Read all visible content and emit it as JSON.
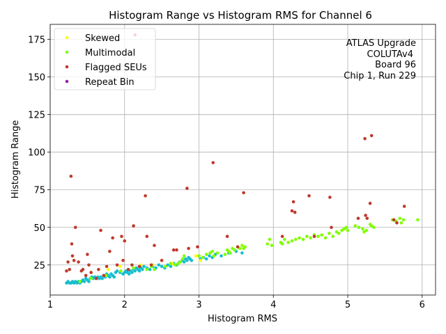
{
  "chart_data": {
    "type": "scatter",
    "title": "Histogram Range vs Histogram RMS for Channel 6",
    "xlabel": "Histogram RMS",
    "ylabel": "Histogram Range",
    "xlim": [
      1.0,
      6.18
    ],
    "ylim": [
      5.0,
      185.0
    ],
    "x_ticks": [
      1,
      2,
      3,
      4,
      5,
      6
    ],
    "y_ticks": [
      25,
      50,
      75,
      100,
      125,
      150,
      175
    ],
    "grid": true,
    "legend_position": "upper-left",
    "annotation": [
      "ATLAS Upgrade",
      "COLUTAv4",
      "Board 96",
      "Chip 1, Run 229"
    ],
    "series": [
      {
        "color": "#17becf",
        "points": [
          [
            1.22,
            13
          ],
          [
            1.24,
            14
          ],
          [
            1.26,
            13
          ],
          [
            1.28,
            13
          ],
          [
            1.3,
            14
          ],
          [
            1.32,
            13
          ],
          [
            1.34,
            14
          ],
          [
            1.36,
            13
          ],
          [
            1.38,
            14
          ],
          [
            1.4,
            13
          ],
          [
            1.42,
            14
          ],
          [
            1.44,
            15
          ],
          [
            1.46,
            14
          ],
          [
            1.48,
            16
          ],
          [
            1.5,
            15
          ],
          [
            1.52,
            14
          ],
          [
            1.54,
            16
          ],
          [
            1.56,
            17
          ],
          [
            1.58,
            16
          ],
          [
            1.6,
            17
          ],
          [
            1.62,
            16
          ],
          [
            1.64,
            17
          ],
          [
            1.66,
            16
          ],
          [
            1.68,
            17
          ],
          [
            1.7,
            16
          ],
          [
            1.72,
            18
          ],
          [
            1.74,
            17
          ],
          [
            1.76,
            19
          ],
          [
            1.78,
            18
          ],
          [
            1.8,
            17
          ],
          [
            1.82,
            19
          ],
          [
            1.84,
            18
          ],
          [
            1.86,
            17
          ],
          [
            1.88,
            20
          ],
          [
            1.9,
            21
          ],
          [
            1.94,
            20
          ],
          [
            1.98,
            19
          ],
          [
            2.0,
            20
          ],
          [
            2.02,
            21
          ],
          [
            2.04,
            20
          ],
          [
            2.06,
            19
          ],
          [
            2.08,
            21
          ],
          [
            2.1,
            20
          ],
          [
            2.12,
            22
          ],
          [
            2.14,
            21
          ],
          [
            2.16,
            23
          ],
          [
            2.18,
            22
          ],
          [
            2.2,
            21
          ],
          [
            2.22,
            23
          ],
          [
            2.24,
            22
          ],
          [
            2.26,
            24
          ],
          [
            2.3,
            23
          ],
          [
            2.34,
            22
          ],
          [
            2.38,
            24
          ],
          [
            2.42,
            23
          ],
          [
            2.46,
            25
          ],
          [
            2.5,
            24
          ],
          [
            2.54,
            23
          ],
          [
            2.58,
            25
          ],
          [
            2.62,
            24
          ],
          [
            2.66,
            26
          ],
          [
            2.7,
            25
          ],
          [
            2.74,
            27
          ],
          [
            2.78,
            28
          ],
          [
            2.8,
            27
          ],
          [
            2.82,
            29
          ],
          [
            2.84,
            28
          ],
          [
            2.86,
            30
          ],
          [
            2.88,
            29
          ],
          [
            2.9,
            28
          ],
          [
            3.02,
            29
          ],
          [
            3.06,
            30
          ],
          [
            3.1,
            29
          ],
          [
            3.14,
            31
          ],
          [
            3.18,
            30
          ],
          [
            3.22,
            32
          ],
          [
            3.3,
            31
          ],
          [
            3.4,
            33
          ],
          [
            3.5,
            34
          ],
          [
            3.58,
            33
          ]
        ]
      },
      {
        "name": "Skewed",
        "color": "#ffff00",
        "points": [
          [
            1.55,
            20
          ],
          [
            1.78,
            22
          ],
          [
            1.94,
            24
          ],
          [
            2.22,
            25
          ],
          [
            2.38,
            25
          ],
          [
            2.64,
            26
          ],
          [
            3.02,
            28
          ],
          [
            2.96,
            31
          ]
        ]
      },
      {
        "name": "Multimodal",
        "color": "#7fff00",
        "points": [
          [
            1.4,
            14
          ],
          [
            1.55,
            16
          ],
          [
            1.75,
            18
          ],
          [
            1.95,
            21
          ],
          [
            2.12,
            23
          ],
          [
            2.3,
            22
          ],
          [
            2.36,
            24
          ],
          [
            2.4,
            22
          ],
          [
            2.55,
            24
          ],
          [
            2.62,
            26
          ],
          [
            2.68,
            25
          ],
          [
            2.72,
            26
          ],
          [
            2.75,
            27
          ],
          [
            2.78,
            29
          ],
          [
            2.8,
            31
          ],
          [
            3.0,
            31
          ],
          [
            3.05,
            30
          ],
          [
            3.1,
            32
          ],
          [
            3.15,
            33
          ],
          [
            3.18,
            34
          ],
          [
            3.2,
            31
          ],
          [
            3.25,
            33
          ],
          [
            3.35,
            32
          ],
          [
            3.38,
            35
          ],
          [
            3.4,
            34
          ],
          [
            3.42,
            33
          ],
          [
            3.45,
            36
          ],
          [
            3.48,
            35
          ],
          [
            3.52,
            37
          ],
          [
            3.55,
            36
          ],
          [
            3.58,
            38
          ],
          [
            3.6,
            36
          ],
          [
            3.62,
            37
          ],
          [
            3.92,
            39
          ],
          [
            3.95,
            42
          ],
          [
            3.98,
            38
          ],
          [
            4.1,
            40
          ],
          [
            4.12,
            39
          ],
          [
            4.15,
            42
          ],
          [
            4.2,
            40
          ],
          [
            4.25,
            41
          ],
          [
            4.3,
            42
          ],
          [
            4.35,
            43
          ],
          [
            4.4,
            42
          ],
          [
            4.45,
            44
          ],
          [
            4.5,
            43
          ],
          [
            4.55,
            45
          ],
          [
            4.6,
            44
          ],
          [
            4.65,
            45
          ],
          [
            4.7,
            43
          ],
          [
            4.75,
            46
          ],
          [
            4.8,
            44
          ],
          [
            4.85,
            47
          ],
          [
            4.88,
            46
          ],
          [
            4.92,
            48
          ],
          [
            4.95,
            49
          ],
          [
            4.98,
            50
          ],
          [
            5.0,
            48
          ],
          [
            5.1,
            51
          ],
          [
            5.15,
            50
          ],
          [
            5.2,
            49
          ],
          [
            5.22,
            47
          ],
          [
            5.25,
            48
          ],
          [
            5.3,
            52
          ],
          [
            5.32,
            51
          ],
          [
            5.35,
            50
          ],
          [
            5.6,
            55
          ],
          [
            5.65,
            54
          ],
          [
            5.7,
            56
          ],
          [
            5.72,
            53
          ],
          [
            5.75,
            55
          ],
          [
            5.94,
            55
          ]
        ]
      },
      {
        "name": "Flagged SEUs",
        "color": "#c0392b",
        "points": [
          [
            1.22,
            21
          ],
          [
            1.24,
            27
          ],
          [
            1.26,
            22
          ],
          [
            1.28,
            84
          ],
          [
            1.29,
            39
          ],
          [
            1.3,
            31
          ],
          [
            1.32,
            28
          ],
          [
            1.34,
            50
          ],
          [
            1.38,
            27
          ],
          [
            1.42,
            21
          ],
          [
            1.44,
            22
          ],
          [
            1.48,
            18
          ],
          [
            1.5,
            32
          ],
          [
            1.52,
            25
          ],
          [
            1.55,
            20
          ],
          [
            1.62,
            16
          ],
          [
            1.65,
            22
          ],
          [
            1.68,
            48
          ],
          [
            1.72,
            18
          ],
          [
            1.76,
            24
          ],
          [
            1.8,
            34
          ],
          [
            1.84,
            43
          ],
          [
            1.9,
            25
          ],
          [
            1.96,
            44
          ],
          [
            1.98,
            28
          ],
          [
            2.0,
            41
          ],
          [
            2.05,
            22
          ],
          [
            2.1,
            25
          ],
          [
            2.12,
            51
          ],
          [
            2.14,
            178
          ],
          [
            2.2,
            24
          ],
          [
            2.28,
            71
          ],
          [
            2.3,
            44
          ],
          [
            2.36,
            25
          ],
          [
            2.4,
            38
          ],
          [
            2.5,
            28
          ],
          [
            2.66,
            35
          ],
          [
            2.7,
            35
          ],
          [
            2.84,
            76
          ],
          [
            2.86,
            36
          ],
          [
            2.98,
            37
          ],
          [
            3.19,
            93
          ],
          [
            3.38,
            44
          ],
          [
            3.52,
            37
          ],
          [
            3.6,
            73
          ],
          [
            4.12,
            44
          ],
          [
            4.25,
            61
          ],
          [
            4.27,
            67
          ],
          [
            4.29,
            60
          ],
          [
            4.48,
            71
          ],
          [
            4.55,
            44
          ],
          [
            4.76,
            70
          ],
          [
            4.78,
            50
          ],
          [
            5.14,
            56
          ],
          [
            5.23,
            109
          ],
          [
            5.24,
            58
          ],
          [
            5.26,
            56
          ],
          [
            5.3,
            66
          ],
          [
            5.32,
            111
          ],
          [
            5.62,
            55
          ],
          [
            5.66,
            53
          ],
          [
            5.76,
            64
          ]
        ]
      },
      {
        "name": "Repeat Bin",
        "color": "#8e24aa",
        "points": []
      }
    ]
  }
}
